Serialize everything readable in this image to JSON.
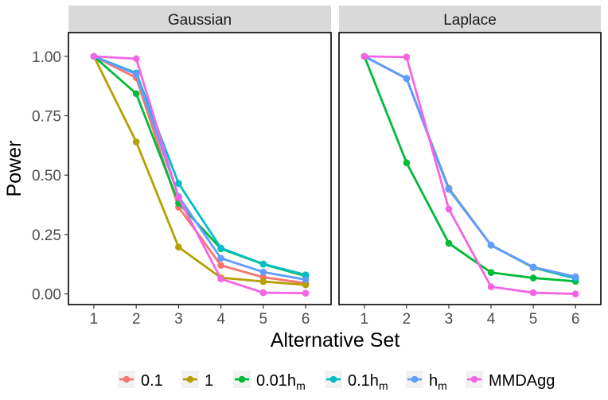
{
  "chart_data": {
    "type": "line",
    "xlabel": "Alternative Set",
    "ylabel": "Power",
    "x": [
      1,
      2,
      3,
      4,
      5,
      6
    ],
    "ylim": [
      -0.045,
      1.1
    ],
    "yticks": [
      0.0,
      0.25,
      0.5,
      0.75,
      1.0
    ],
    "ytick_labels": [
      "0.00",
      "0.25",
      "0.50",
      "0.75",
      "1.00"
    ],
    "xtick_labels": [
      "1",
      "2",
      "3",
      "4",
      "5",
      "6"
    ],
    "legend_position": "bottom",
    "series_meta": [
      {
        "name": "0.1",
        "label": "0.1",
        "sub": "",
        "color": "#F8766D"
      },
      {
        "name": "1",
        "label": "1",
        "sub": "",
        "color": "#B79F00"
      },
      {
        "name": "0.01hm",
        "label": "0.01h",
        "sub": "m",
        "color": "#00BA38"
      },
      {
        "name": "0.1hm",
        "label": "0.1h",
        "sub": "m",
        "color": "#00BFC4"
      },
      {
        "name": "hm",
        "label": "h",
        "sub": "m",
        "color": "#619CFF"
      },
      {
        "name": "MMDAgg",
        "label": "MMDAgg",
        "sub": "",
        "color": "#F564E3"
      }
    ],
    "panels": [
      {
        "title": "Gaussian",
        "series": [
          {
            "name": "0.1",
            "values": [
              1.0,
              0.91,
              0.365,
              0.12,
              0.07,
              0.045
            ]
          },
          {
            "name": "1",
            "values": [
              1.0,
              0.64,
              0.197,
              0.068,
              0.052,
              0.038
            ]
          },
          {
            "name": "0.01hm",
            "values": [
              1.0,
              0.843,
              0.382,
              0.19,
              0.125,
              0.075
            ]
          },
          {
            "name": "0.1hm",
            "values": [
              1.0,
              0.93,
              0.465,
              0.193,
              0.126,
              0.08
            ]
          },
          {
            "name": "hm",
            "values": [
              1.0,
              0.925,
              0.41,
              0.15,
              0.092,
              0.06
            ]
          },
          {
            "name": "MMDAgg",
            "values": [
              1.0,
              0.99,
              0.405,
              0.063,
              0.005,
              0.003
            ]
          }
        ]
      },
      {
        "title": "Laplace",
        "series": [
          {
            "name": "0.1",
            "values": [
              1.0,
              0.907,
              0.44,
              0.205,
              0.112,
              0.068
            ]
          },
          {
            "name": "1",
            "values": [
              1.0,
              0.907,
              0.445,
              0.205,
              0.11,
              0.065
            ]
          },
          {
            "name": "0.01hm",
            "values": [
              1.0,
              0.552,
              0.213,
              0.09,
              0.067,
              0.053
            ]
          },
          {
            "name": "0.1hm",
            "values": [
              1.0,
              0.907,
              0.442,
              0.205,
              0.112,
              0.065
            ]
          },
          {
            "name": "hm",
            "values": [
              1.0,
              0.907,
              0.44,
              0.205,
              0.113,
              0.072
            ]
          },
          {
            "name": "MMDAgg",
            "values": [
              1.0,
              0.997,
              0.357,
              0.03,
              0.005,
              0.0
            ]
          }
        ]
      }
    ]
  }
}
